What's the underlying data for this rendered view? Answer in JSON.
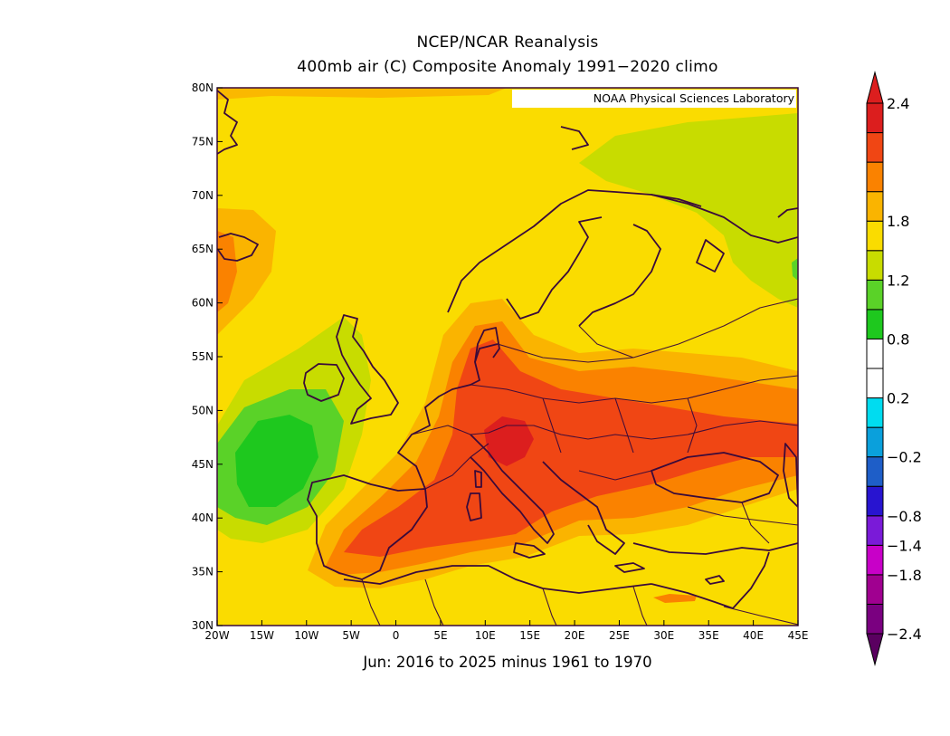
{
  "title": "NCEP/NCAR Reanalysis",
  "subtitle": "400mb air (C) Composite Anomaly 1991−2020 climo",
  "caption": "Jun: 2016 to 2025 minus 1961 to 1970",
  "credit": "NOAA Physical Sciences Laboratory",
  "map": {
    "region": "Europe",
    "projection": "lat-lon",
    "lon_range": [
      -20,
      45
    ],
    "lat_range": [
      30,
      80
    ],
    "lat_ticks": [
      "30N",
      "35N",
      "40N",
      "45N",
      "50N",
      "55N",
      "60N",
      "65N",
      "70N",
      "75N",
      "80N"
    ],
    "lon_ticks": [
      "20W",
      "15W",
      "10W",
      "5W",
      "0",
      "5E",
      "10E",
      "15E",
      "20E",
      "25E",
      "30E",
      "35E",
      "40E",
      "45E"
    ],
    "coastline_color": "#3a0a3a",
    "anomaly_pattern": [
      {
        "region": "western Mediterranean / Iberia to Alps",
        "level": "1.8 to 2.4"
      },
      {
        "region": "central-eastern Europe",
        "level": "1.8 to 2.4"
      },
      {
        "region": "Atlantic west of Iberia/Ireland",
        "level": "0.2 to 0.8"
      },
      {
        "region": "northeast Scandinavia / Barents",
        "level": "0.8 to 1.2"
      },
      {
        "region": "remainder",
        "level": "1.2 to 1.5"
      }
    ]
  },
  "colorbar": {
    "labels": [
      "2.4",
      "1.8",
      "1.2",
      "0.8",
      "0.2",
      "−0.2",
      "−0.8",
      "−1.4",
      "−1.8",
      "−2.4"
    ],
    "colors": [
      "#7a0080",
      "#a00090",
      "#c800c8",
      "#7a1ad8",
      "#2814d0",
      "#1e5ec8",
      "#0aa0dc",
      "#00dcf0",
      "#ffffff",
      "#ffffff",
      "#1ec81e",
      "#5ad228",
      "#c8dc00",
      "#fadc00",
      "#fab400",
      "#fa8200",
      "#f04614",
      "#dc1e1e"
    ]
  }
}
